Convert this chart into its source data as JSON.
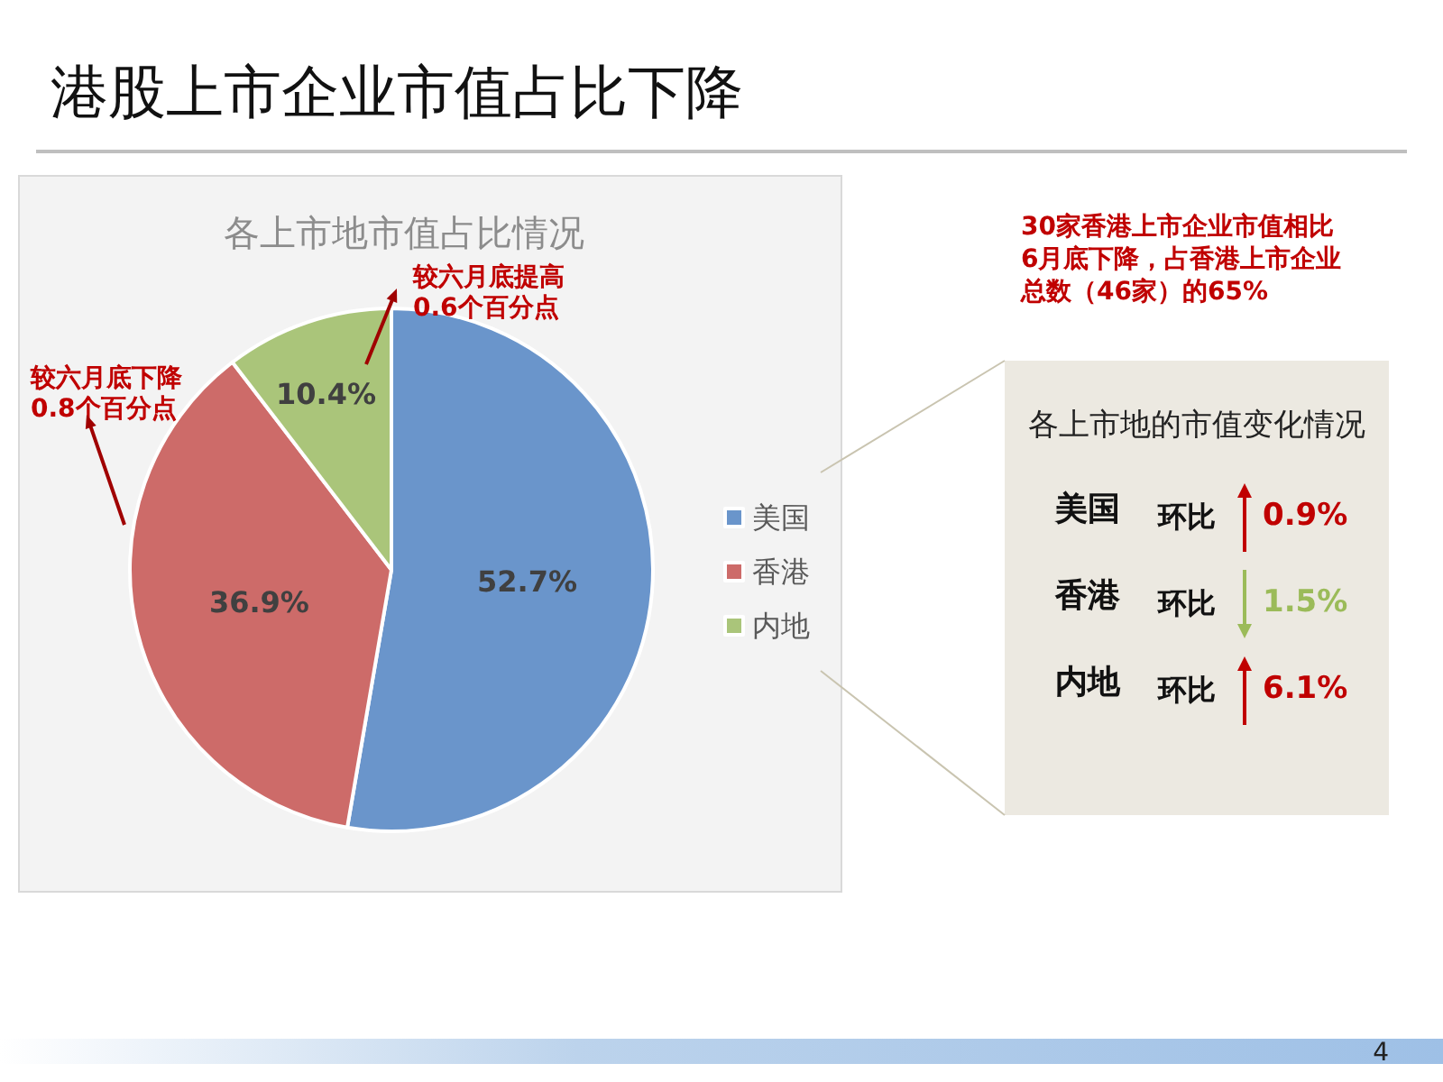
{
  "chart_data": [
    {
      "type": "other",
      "title": "港股上市企业市值占比下降",
      "annotations": [
        "4"
      ]
    },
    {
      "type": "pie",
      "title": "各上市地市值占比情况",
      "categories": [
        "美国",
        "香港",
        "内地"
      ],
      "values": [
        52.7,
        36.9,
        10.4
      ],
      "colors": [
        "#6a95cb",
        "#cd6b69",
        "#aac57a"
      ],
      "value_labels": [
        "52.7%",
        "36.9%",
        "10.4%"
      ],
      "legend": "right",
      "annotations": [
        "较六月底提高\n0.6个百分点",
        "较六月底下降\n0.8个百分点"
      ]
    },
    {
      "type": "other",
      "title": "各上市地的市值变化情况",
      "subtitle": "30家香港上市企业市值相比6月底下降，占香港上市企业总数（46家）的65%",
      "categories": [
        "美国",
        "香港",
        "内地"
      ],
      "series": [
        {
          "color": "#c00000",
          "values": [
            0.9,
            null,
            6.1
          ],
          "value_labels": [
            "0.9%",
            null,
            "6.1%"
          ]
        },
        {
          "color": "#9bbb59",
          "values": [
            null,
            1.5,
            null
          ],
          "value_labels": [
            null,
            "1.5%",
            null
          ]
        }
      ],
      "annotations": [
        "环比",
        "环比",
        "环比"
      ]
    }
  ]
}
